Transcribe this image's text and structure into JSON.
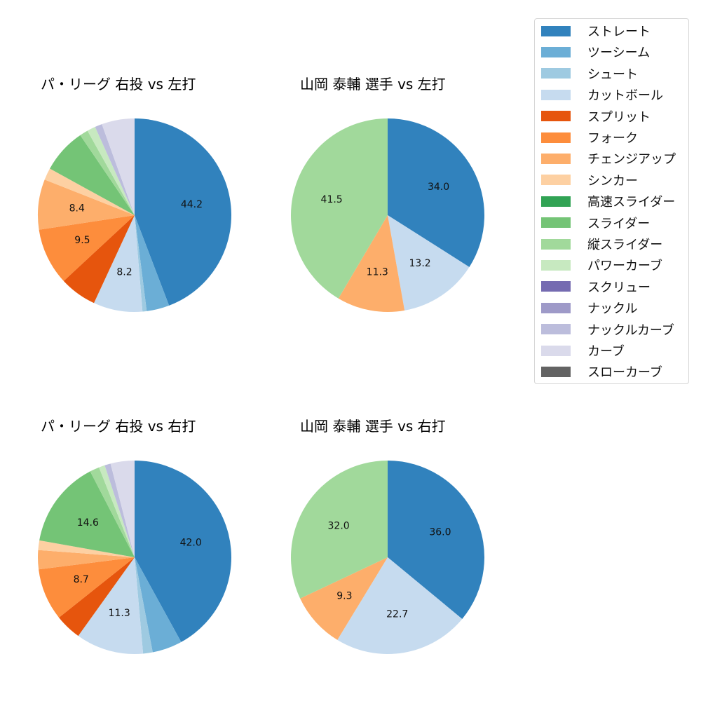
{
  "chart_data": [
    {
      "type": "pie",
      "title": "パ・リーグ 右投 vs 左打",
      "start_angle": "12 o'clock, clockwise",
      "slices": [
        {
          "label": "ストレート",
          "value": 44.2,
          "color": "#3182bd",
          "show_label": true
        },
        {
          "label": "ツーシーム",
          "value": 3.8,
          "color": "#6baed6",
          "show_label": false
        },
        {
          "label": "シュート",
          "value": 0.7,
          "color": "#9ecae1",
          "show_label": false
        },
        {
          "label": "カットボール",
          "value": 8.2,
          "color": "#c6dbef",
          "show_label": true
        },
        {
          "label": "スプリット",
          "value": 6.2,
          "color": "#e6550d",
          "show_label": false
        },
        {
          "label": "フォーク",
          "value": 9.5,
          "color": "#fd8d3c",
          "show_label": true
        },
        {
          "label": "チェンジアップ",
          "value": 8.4,
          "color": "#fdae6b",
          "show_label": true
        },
        {
          "label": "シンカー",
          "value": 2.0,
          "color": "#fdd0a2",
          "show_label": false
        },
        {
          "label": "スライダー",
          "value": 7.5,
          "color": "#74c476",
          "show_label": false
        },
        {
          "label": "縦スライダー",
          "value": 1.4,
          "color": "#a1d99b",
          "show_label": false
        },
        {
          "label": "パワーカーブ",
          "value": 1.4,
          "color": "#c7e9c0",
          "show_label": false
        },
        {
          "label": "ナックルカーブ",
          "value": 1.2,
          "color": "#bcbddc",
          "show_label": false
        },
        {
          "label": "カーブ",
          "value": 5.5,
          "color": "#dadaeb",
          "show_label": false
        }
      ]
    },
    {
      "type": "pie",
      "title": "山岡 泰輔 選手 vs 左打",
      "start_angle": "12 o'clock, clockwise",
      "slices": [
        {
          "label": "ストレート",
          "value": 34.0,
          "color": "#3182bd",
          "show_label": true
        },
        {
          "label": "カットボール",
          "value": 13.2,
          "color": "#c6dbef",
          "show_label": true
        },
        {
          "label": "チェンジアップ",
          "value": 11.3,
          "color": "#fdae6b",
          "show_label": true
        },
        {
          "label": "縦スライダー",
          "value": 41.5,
          "color": "#a1d99b",
          "show_label": true
        }
      ]
    },
    {
      "type": "pie",
      "title": "パ・リーグ 右投 vs 右打",
      "start_angle": "12 o'clock, clockwise",
      "slices": [
        {
          "label": "ストレート",
          "value": 42.0,
          "color": "#3182bd",
          "show_label": true
        },
        {
          "label": "ツーシーム",
          "value": 5.0,
          "color": "#6baed6",
          "show_label": false
        },
        {
          "label": "シュート",
          "value": 1.6,
          "color": "#9ecae1",
          "show_label": false
        },
        {
          "label": "カットボール",
          "value": 11.3,
          "color": "#c6dbef",
          "show_label": true
        },
        {
          "label": "スプリット",
          "value": 4.4,
          "color": "#e6550d",
          "show_label": false
        },
        {
          "label": "フォーク",
          "value": 8.7,
          "color": "#fd8d3c",
          "show_label": true
        },
        {
          "label": "チェンジアップ",
          "value": 3.2,
          "color": "#fdae6b",
          "show_label": false
        },
        {
          "label": "シンカー",
          "value": 1.6,
          "color": "#fdd0a2",
          "show_label": false
        },
        {
          "label": "スライダー",
          "value": 14.6,
          "color": "#74c476",
          "show_label": true
        },
        {
          "label": "縦スライダー",
          "value": 1.6,
          "color": "#a1d99b",
          "show_label": false
        },
        {
          "label": "パワーカーブ",
          "value": 1.0,
          "color": "#c7e9c0",
          "show_label": false
        },
        {
          "label": "ナックルカーブ",
          "value": 1.0,
          "color": "#bcbddc",
          "show_label": false
        },
        {
          "label": "カーブ",
          "value": 4.0,
          "color": "#dadaeb",
          "show_label": false
        }
      ]
    },
    {
      "type": "pie",
      "title": "山岡 泰輔 選手 vs 右打",
      "start_angle": "12 o'clock, clockwise",
      "slices": [
        {
          "label": "ストレート",
          "value": 36.0,
          "color": "#3182bd",
          "show_label": true
        },
        {
          "label": "カットボール",
          "value": 22.7,
          "color": "#c6dbef",
          "show_label": true
        },
        {
          "label": "チェンジアップ",
          "value": 9.3,
          "color": "#fdae6b",
          "show_label": true
        },
        {
          "label": "縦スライダー",
          "value": 32.0,
          "color": "#a1d99b",
          "show_label": true
        }
      ]
    }
  ],
  "legend": {
    "position": "upper right",
    "items": [
      {
        "label": "ストレート",
        "color": "#3182bd"
      },
      {
        "label": "ツーシーム",
        "color": "#6baed6"
      },
      {
        "label": "シュート",
        "color": "#9ecae1"
      },
      {
        "label": "カットボール",
        "color": "#c6dbef"
      },
      {
        "label": "スプリット",
        "color": "#e6550d"
      },
      {
        "label": "フォーク",
        "color": "#fd8d3c"
      },
      {
        "label": "チェンジアップ",
        "color": "#fdae6b"
      },
      {
        "label": "シンカー",
        "color": "#fdd0a2"
      },
      {
        "label": "高速スライダー",
        "color": "#31a354"
      },
      {
        "label": "スライダー",
        "color": "#74c476"
      },
      {
        "label": "縦スライダー",
        "color": "#a1d99b"
      },
      {
        "label": "パワーカーブ",
        "color": "#c7e9c0"
      },
      {
        "label": "スクリュー",
        "color": "#756bb1"
      },
      {
        "label": "ナックル",
        "color": "#9e9ac8"
      },
      {
        "label": "ナックルカーブ",
        "color": "#bcbddc"
      },
      {
        "label": "カーブ",
        "color": "#dadaeb"
      },
      {
        "label": "スローカーブ",
        "color": "#636363"
      }
    ]
  }
}
